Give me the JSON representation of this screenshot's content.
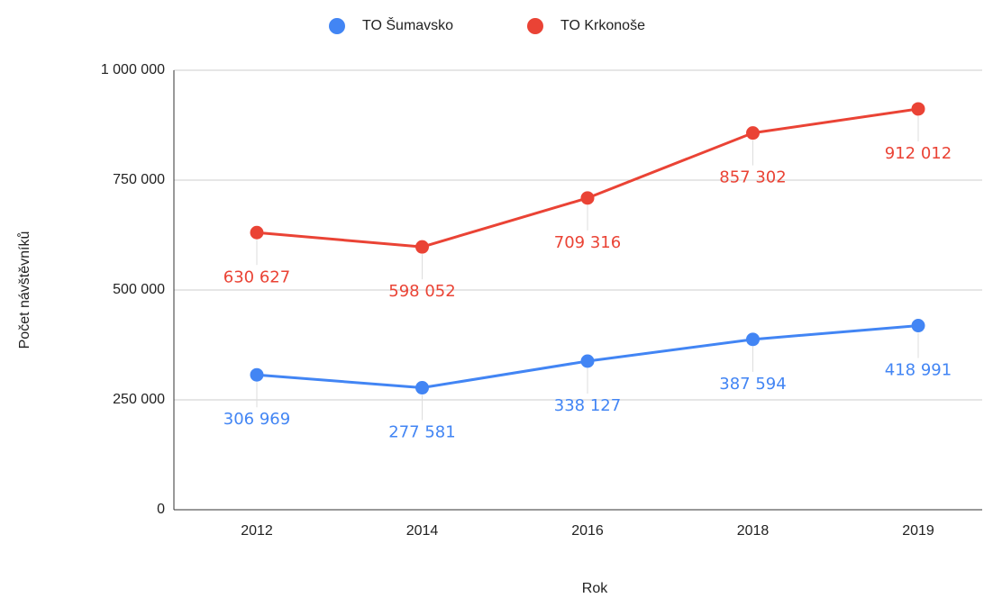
{
  "chart_data": {
    "type": "line",
    "y_label": "Počet návštěvníků",
    "x_label": "Rok",
    "categories": [
      "2012",
      "2014",
      "2016",
      "2018",
      "2019"
    ],
    "series": [
      {
        "name": "TO Šumavsko",
        "color": "#4285f4",
        "values": [
          306969,
          277581,
          338127,
          387594,
          418991
        ],
        "value_labels": [
          "306 969",
          "277 581",
          "338 127",
          "387 594",
          "418 991"
        ]
      },
      {
        "name": "TO Krkonoše",
        "color": "#ea4335",
        "values": [
          630627,
          598052,
          709316,
          857302,
          912012
        ],
        "value_labels": [
          "630 627",
          "598 052",
          "709 316",
          "857 302",
          "912 012"
        ]
      }
    ],
    "ylim": [
      0,
      1000000
    ],
    "yticks": [
      0,
      {
        "value": 250000,
        "label": "250 000"
      },
      {
        "value": 500000,
        "label": "500 000"
      },
      {
        "value": 750000,
        "label": "750 000"
      },
      {
        "value": 1000000,
        "label": "1 000 000"
      }
    ],
    "grid": true,
    "legend": "top"
  }
}
